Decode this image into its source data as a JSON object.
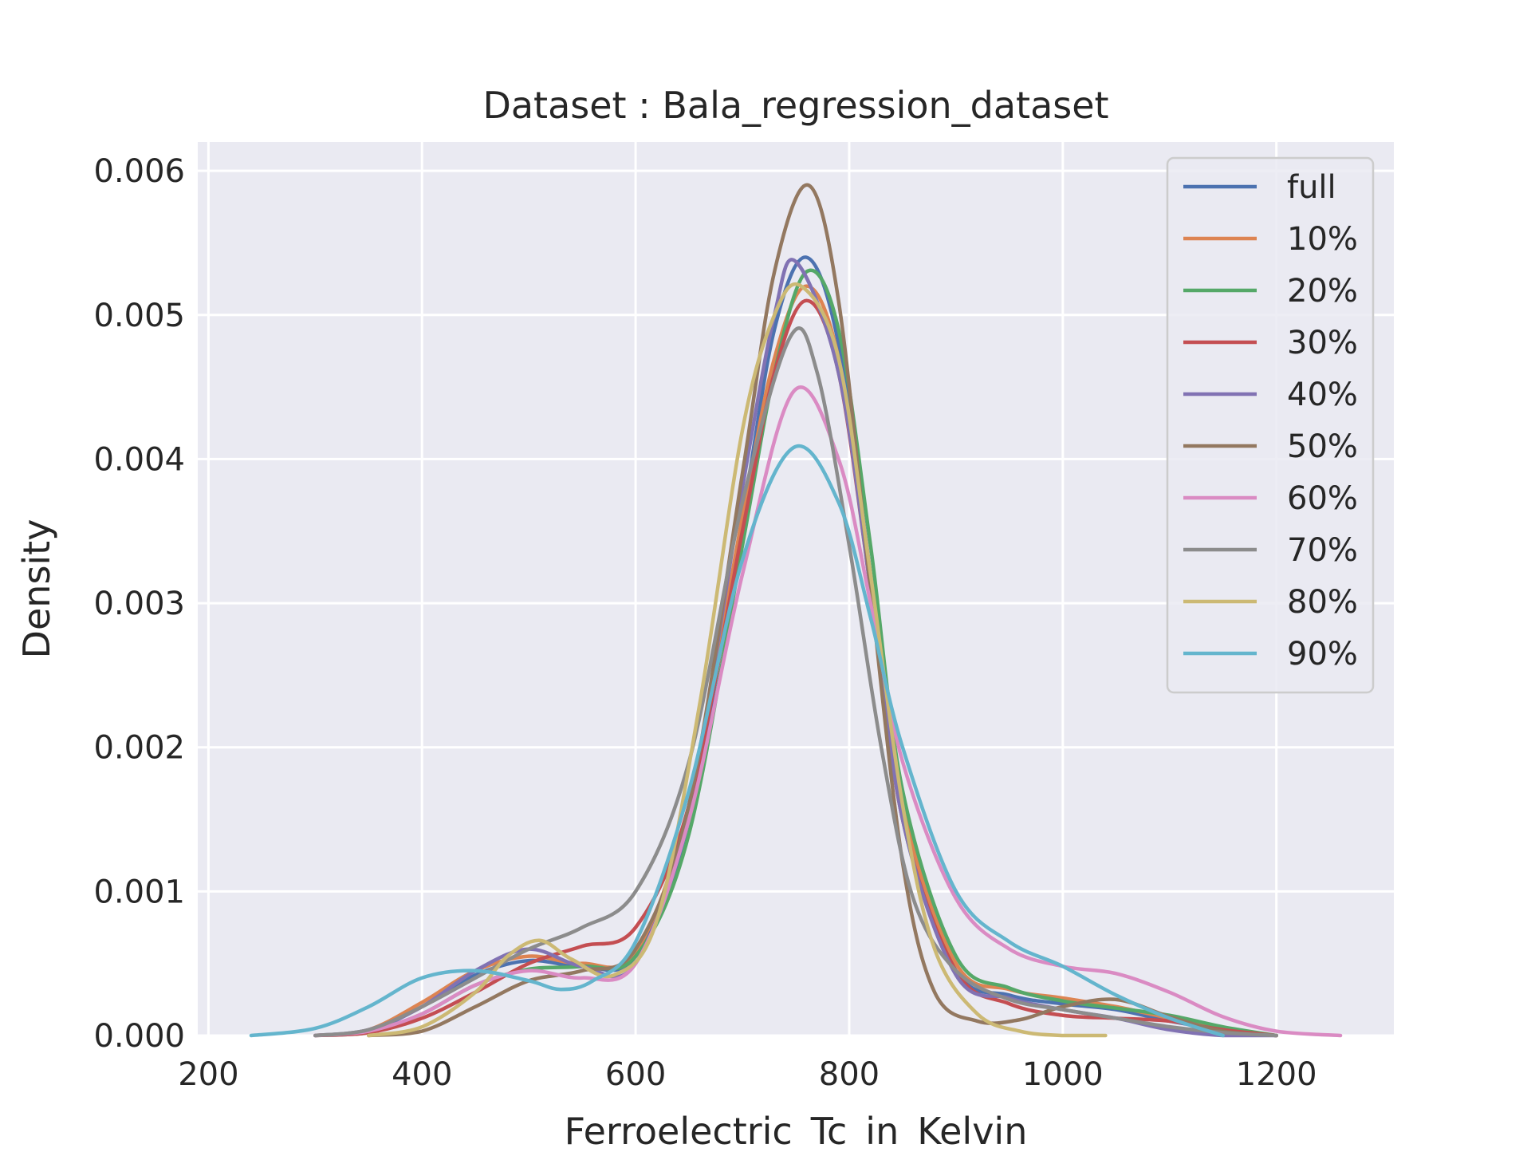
{
  "chart_data": {
    "type": "line",
    "title": "Dataset : Bala_regression_dataset",
    "xlabel": "Ferroelectric_Tc_in_Kelvin",
    "ylabel": "Density",
    "xlim": [
      190,
      1310
    ],
    "ylim": [
      0,
      0.0062
    ],
    "xticks": [
      200,
      400,
      600,
      800,
      1000,
      1200
    ],
    "xtick_labels": [
      "200",
      "400",
      "600",
      "800",
      "1000",
      "1200"
    ],
    "yticks": [
      0,
      0.001,
      0.002,
      0.003,
      0.004,
      0.005,
      0.006
    ],
    "ytick_labels": [
      "0.000",
      "0.001",
      "0.002",
      "0.003",
      "0.004",
      "0.005",
      "0.006"
    ],
    "grid": true,
    "background": "#eaeaf2",
    "legend_position": "top-right",
    "series": [
      {
        "name": "full",
        "color": "#4c72b0",
        "x": [
          300,
          350,
          400,
          450,
          500,
          550,
          600,
          650,
          700,
          730,
          760,
          790,
          820,
          850,
          900,
          950,
          1000,
          1050,
          1100,
          1150,
          1200
        ],
        "y": [
          0.0,
          3e-05,
          0.0002,
          0.00042,
          0.00052,
          0.00048,
          0.00055,
          0.0015,
          0.0036,
          0.0049,
          0.0054,
          0.0048,
          0.0032,
          0.0015,
          0.00045,
          0.00028,
          0.00022,
          0.00018,
          0.0001,
          4e-05,
          0.0
        ]
      },
      {
        "name": "10%",
        "color": "#dd8452",
        "x": [
          300,
          350,
          400,
          450,
          500,
          550,
          600,
          650,
          700,
          730,
          760,
          790,
          820,
          850,
          900,
          950,
          1000,
          1050,
          1100,
          1150,
          1200
        ],
        "y": [
          0.0,
          4e-05,
          0.00023,
          0.00045,
          0.00055,
          0.0005,
          0.00058,
          0.0016,
          0.0036,
          0.0047,
          0.0052,
          0.0047,
          0.0032,
          0.0016,
          0.0005,
          0.00032,
          0.00026,
          0.0002,
          0.00012,
          5e-05,
          0.0
        ]
      },
      {
        "name": "20%",
        "color": "#55a868",
        "x": [
          300,
          350,
          400,
          450,
          500,
          550,
          600,
          650,
          700,
          730,
          760,
          790,
          820,
          850,
          900,
          950,
          1000,
          1050,
          1100,
          1150,
          1200
        ],
        "y": [
          0.0,
          2e-05,
          0.00015,
          0.00035,
          0.00046,
          0.00048,
          0.00055,
          0.0014,
          0.0034,
          0.0046,
          0.0053,
          0.0049,
          0.0034,
          0.0017,
          0.00055,
          0.00033,
          0.00024,
          0.00019,
          0.00014,
          6e-05,
          0.0
        ]
      },
      {
        "name": "30%",
        "color": "#c44e52",
        "x": [
          300,
          350,
          400,
          450,
          500,
          550,
          600,
          650,
          700,
          730,
          760,
          790,
          820,
          850,
          900,
          950,
          1000,
          1050,
          1100,
          1150,
          1200
        ],
        "y": [
          0.0,
          2e-05,
          0.00012,
          0.0003,
          0.0005,
          0.00062,
          0.00075,
          0.0016,
          0.0035,
          0.0046,
          0.0051,
          0.0046,
          0.0031,
          0.0015,
          0.00045,
          0.00022,
          0.00014,
          0.00012,
          0.0001,
          4e-05,
          0.0
        ]
      },
      {
        "name": "40%",
        "color": "#8172b3",
        "x": [
          300,
          350,
          400,
          450,
          500,
          550,
          600,
          650,
          700,
          730,
          750,
          790,
          820,
          850,
          900,
          950,
          1000,
          1050,
          1100,
          1150,
          1200
        ],
        "y": [
          0.0,
          4e-05,
          0.0002,
          0.00045,
          0.0006,
          0.00048,
          0.0005,
          0.0016,
          0.0038,
          0.005,
          0.00537,
          0.0046,
          0.0031,
          0.0015,
          0.00042,
          0.00026,
          0.00018,
          0.00012,
          4e-05,
          0.0,
          0.0
        ]
      },
      {
        "name": "50%",
        "color": "#937860",
        "x": [
          350,
          400,
          450,
          500,
          550,
          600,
          650,
          700,
          730,
          762,
          790,
          820,
          850,
          880,
          920,
          960,
          1000,
          1050,
          1100,
          1150,
          1200
        ],
        "y": [
          0.0,
          3e-05,
          0.0002,
          0.00038,
          0.00045,
          0.0006,
          0.0016,
          0.0039,
          0.0053,
          0.0059,
          0.0051,
          0.0031,
          0.0012,
          0.0003,
          0.0001,
          0.00011,
          0.0002,
          0.00025,
          0.00013,
          3e-05,
          0.0
        ]
      },
      {
        "name": "60%",
        "color": "#da8bc3",
        "x": [
          300,
          350,
          400,
          450,
          500,
          550,
          600,
          650,
          700,
          748,
          790,
          820,
          850,
          900,
          950,
          1000,
          1050,
          1100,
          1150,
          1200,
          1260
        ],
        "y": [
          0.0,
          3e-05,
          0.00015,
          0.00035,
          0.00045,
          0.0004,
          0.0005,
          0.0015,
          0.0032,
          0.00447,
          0.004,
          0.003,
          0.0019,
          0.00095,
          0.0006,
          0.00048,
          0.00043,
          0.0003,
          0.00013,
          3e-05,
          0.0
        ]
      },
      {
        "name": "70%",
        "color": "#8c8c8c",
        "x": [
          300,
          350,
          400,
          450,
          500,
          550,
          600,
          650,
          700,
          745,
          770,
          800,
          830,
          860,
          900,
          950,
          1000,
          1050,
          1100,
          1150,
          1200
        ],
        "y": [
          0.0,
          4e-05,
          0.0002,
          0.0004,
          0.0006,
          0.00075,
          0.001,
          0.0019,
          0.0037,
          0.00485,
          0.0046,
          0.0034,
          0.002,
          0.00095,
          0.00045,
          0.00025,
          0.00018,
          0.00012,
          6e-05,
          2e-05,
          0.0
        ]
      },
      {
        "name": "80%",
        "color": "#ccb974",
        "x": [
          350,
          400,
          450,
          480,
          510,
          540,
          580,
          620,
          660,
          700,
          730,
          755,
          790,
          820,
          850,
          880,
          920,
          960,
          1000,
          1040
        ],
        "y": [
          0.0,
          6e-05,
          0.0003,
          0.00055,
          0.00066,
          0.00053,
          0.00042,
          0.0008,
          0.0023,
          0.0042,
          0.005,
          0.0052,
          0.0047,
          0.0032,
          0.0016,
          0.0006,
          0.00015,
          3e-05,
          0.0,
          0.0
        ]
      },
      {
        "name": "90%",
        "color": "#64b5cd",
        "x": [
          240,
          300,
          350,
          400,
          450,
          500,
          530,
          560,
          600,
          650,
          700,
          748,
          790,
          820,
          850,
          900,
          950,
          1000,
          1050,
          1100,
          1150
        ],
        "y": [
          0.0,
          5e-05,
          0.0002,
          0.0004,
          0.00045,
          0.00038,
          0.00032,
          0.00038,
          0.00065,
          0.0017,
          0.0033,
          0.00408,
          0.0037,
          0.0029,
          0.002,
          0.001,
          0.00065,
          0.00048,
          0.00028,
          0.00012,
          0.0
        ]
      }
    ]
  }
}
